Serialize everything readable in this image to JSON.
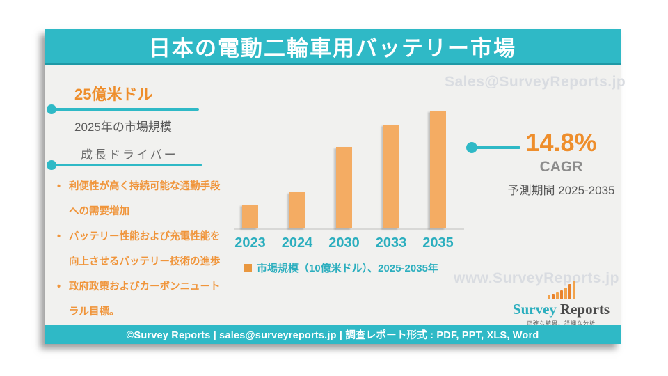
{
  "page": {
    "title": "日本の電動二輪車用バッテリー市場"
  },
  "watermarks": {
    "top": "Sales@SurveyReports.jp",
    "bottom": "www.SurveyReports.jp"
  },
  "market_size": {
    "value": "25億米ドル",
    "caption": "2025年の市場規模"
  },
  "growth_drivers": {
    "heading": "成長ドライバー",
    "items": [
      "利便性が高く持続可能な通勤手段への需要増加",
      "バッテリー性能および充電性能を向上させるバッテリー技術の進歩",
      "政府政策およびカーボンニュートラル目標。"
    ]
  },
  "cagr": {
    "value": "14.8%",
    "label": "CAGR",
    "period": "予測期間 2025-2035"
  },
  "chart_data": {
    "type": "bar",
    "categories": [
      "2023",
      "2024",
      "2030",
      "2033",
      "2035"
    ],
    "values": [
      2.0,
      3.1,
      6.9,
      8.8,
      10.0
    ],
    "unit": "10億米ドル",
    "legend": "市場規模（10億米ドル）、2025-2035年",
    "legend_position": "bottom",
    "bar_color": "#F4AC63",
    "ylim": [
      0,
      10
    ],
    "grid": false,
    "annotations": [
      "25億米ドル 2025年の市場規模",
      "14.8% CAGR 予測期間 2025-2035"
    ]
  },
  "logo": {
    "word1": "Survey",
    "word2": "Reports",
    "tagline": "正確な結果、詳細な分析"
  },
  "footer": {
    "text": "©Survey Reports | sales@surveyreports.jp |  調査レポート形式 : PDF, PPT, XLS, Word"
  },
  "colors": {
    "teal": "#2FB9C6",
    "teal_text": "#2BAEBE",
    "orange": "#EE8E2C",
    "bullet_orange": "#F0953B",
    "bar_orange": "#F4AC63",
    "gray_text": "#595959",
    "cagr_gray": "#8C8C8C",
    "panel_bg": "#F1F1EF",
    "watermark": "#D9DCE1"
  }
}
